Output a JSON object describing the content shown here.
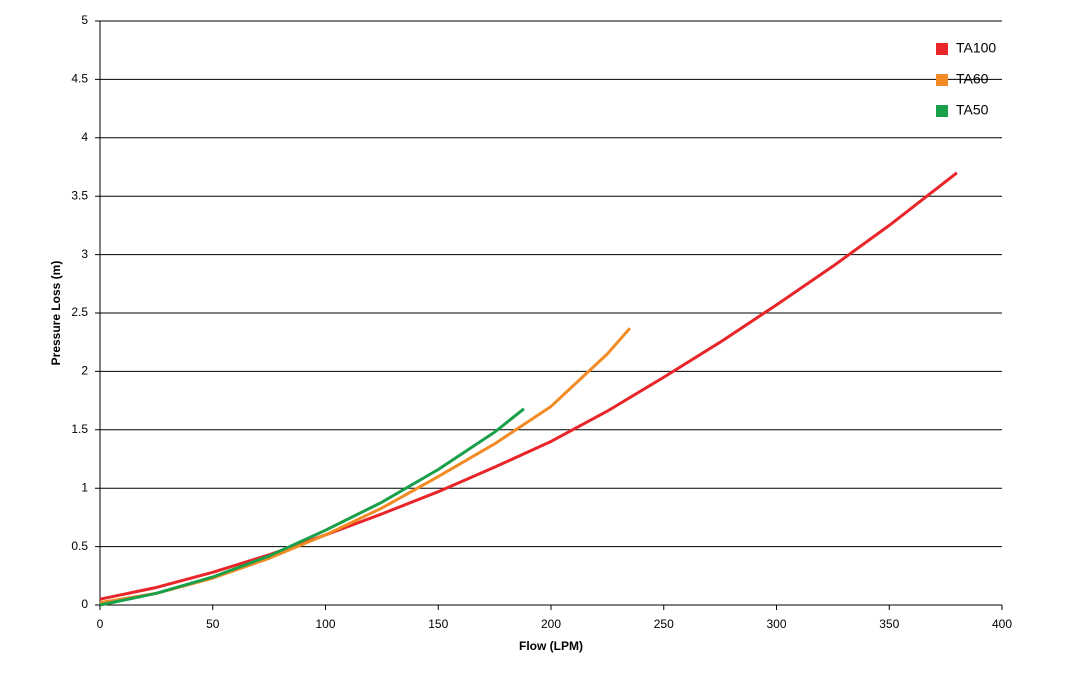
{
  "chart_data": {
    "type": "line",
    "xlabel": "Flow (LPM)",
    "ylabel": "Pressure Loss (m)",
    "xlim": [
      0,
      400
    ],
    "xticks": [
      0,
      50,
      100,
      150,
      200,
      250,
      300,
      350,
      400
    ],
    "ylim": [
      0,
      5
    ],
    "yticks": [
      0,
      0.5,
      1,
      1.5,
      2,
      2.5,
      3,
      3.5,
      4,
      4.5,
      5
    ],
    "grid": true,
    "legend": "top-right",
    "series": [
      {
        "name": "TA100",
        "color": "#e8262a",
        "x": [
          0,
          25,
          50,
          75,
          100,
          125,
          150,
          175,
          200,
          225,
          250,
          275,
          300,
          325,
          350,
          380
        ],
        "values": [
          0.05,
          0.15,
          0.28,
          0.43,
          0.6,
          0.78,
          0.97,
          1.18,
          1.4,
          1.66,
          1.95,
          2.25,
          2.57,
          2.9,
          3.25,
          3.7
        ]
      },
      {
        "name": "TA60",
        "color": "#f28b24",
        "x": [
          0,
          25,
          50,
          75,
          100,
          125,
          150,
          175,
          200,
          225,
          235
        ],
        "values": [
          0.02,
          0.1,
          0.23,
          0.4,
          0.6,
          0.83,
          1.1,
          1.38,
          1.7,
          2.15,
          2.37
        ]
      },
      {
        "name": "TA50",
        "color": "#1aa04a",
        "x": [
          0,
          25,
          50,
          75,
          100,
          125,
          150,
          175,
          188
        ],
        "values": [
          0,
          0.1,
          0.24,
          0.42,
          0.64,
          0.88,
          1.16,
          1.48,
          1.68
        ]
      }
    ]
  }
}
